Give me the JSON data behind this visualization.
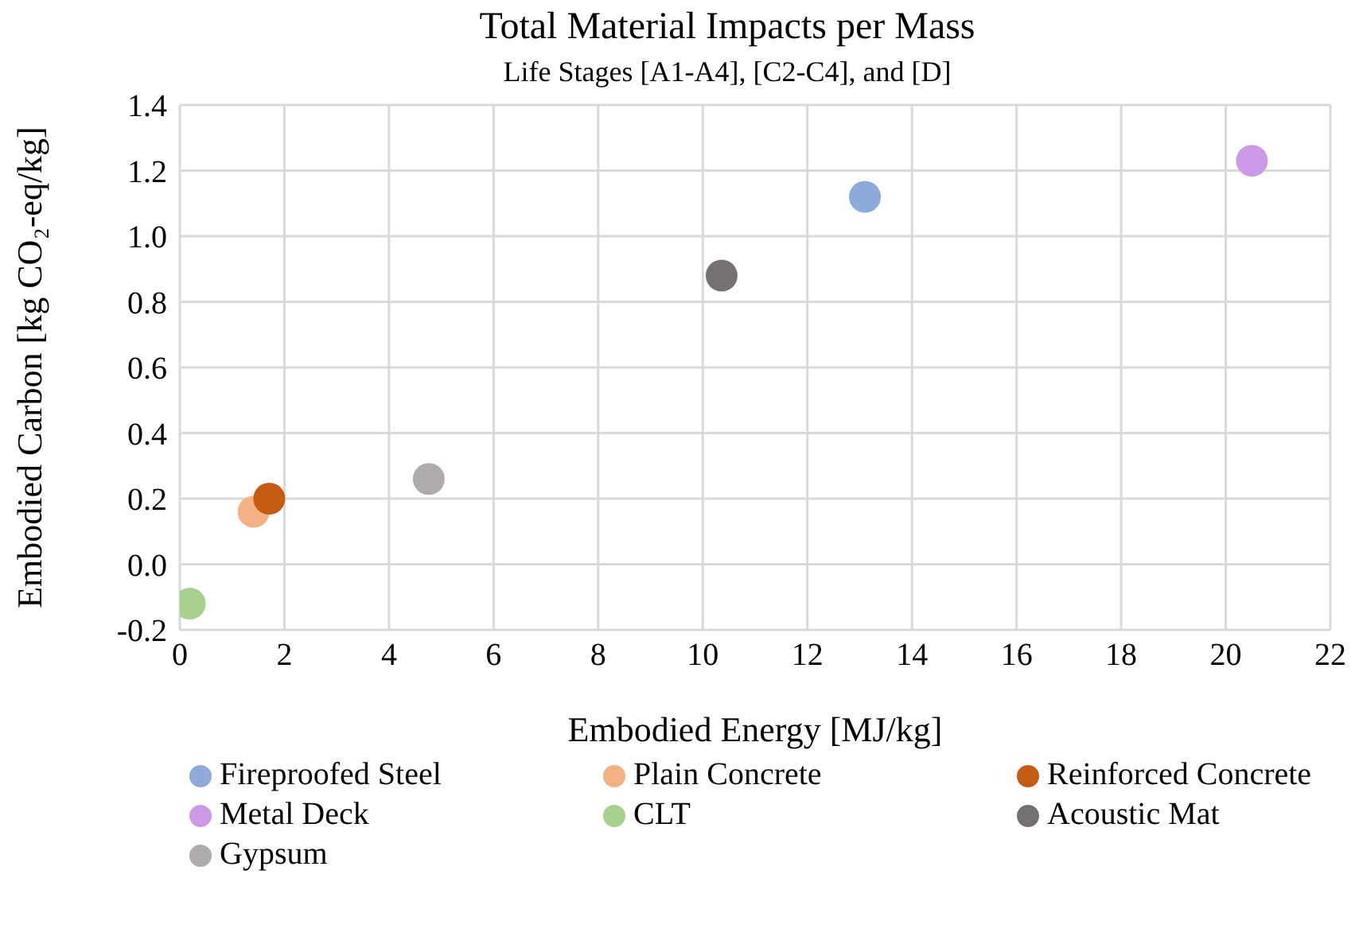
{
  "chart_data": {
    "type": "scatter",
    "title": "Total Material Impacts per Mass",
    "subtitle": "Life Stages [A1-A4], [C2-C4], and [D]",
    "xlabel": "Embodied Energy [MJ/kg]",
    "ylabel": "Embodied Carbon [kg CO₂-eq/kg]",
    "xlim": [
      0,
      22
    ],
    "xticks": [
      0,
      2,
      4,
      6,
      8,
      10,
      12,
      14,
      16,
      18,
      20,
      22
    ],
    "ylim": [
      -0.2,
      1.4
    ],
    "yticks": [
      {
        "value": -0.2,
        "label": "-0.2"
      },
      {
        "value": 0,
        "label": "0.0"
      },
      {
        "value": 0.2,
        "label": "0.2"
      },
      {
        "value": 0.4,
        "label": "0.4"
      },
      {
        "value": 0.6,
        "label": "0.6"
      },
      {
        "value": 0.8,
        "label": "0.8"
      },
      {
        "value": 1,
        "label": "1.0"
      },
      {
        "value": 1.2,
        "label": "1.2"
      },
      {
        "value": 1.4,
        "label": "1.4"
      }
    ],
    "grid": true,
    "legend": "bottom",
    "marker": "circle",
    "series": [
      {
        "name": "Fireproofed Steel",
        "color": "#8eaadb",
        "x": [
          13.1
        ],
        "values": [
          1.12
        ]
      },
      {
        "name": "Plain Concrete",
        "color": "#f4b183",
        "x": [
          1.41
        ],
        "values": [
          0.16
        ]
      },
      {
        "name": "Reinforced Concrete",
        "color": "#c55a11",
        "x": [
          1.71
        ],
        "values": [
          0.2
        ]
      },
      {
        "name": "Metal Deck",
        "color": "#cc99e6",
        "x": [
          20.5
        ],
        "values": [
          1.23
        ]
      },
      {
        "name": "CLT",
        "color": "#a9d18e",
        "x": [
          0.19
        ],
        "values": [
          -0.12
        ]
      },
      {
        "name": "Acoustic Mat",
        "color": "#767171",
        "x": [
          10.36
        ],
        "values": [
          0.88
        ]
      },
      {
        "name": "Gypsum",
        "color": "#afabab",
        "x": [
          4.76
        ],
        "values": [
          0.26
        ]
      }
    ]
  }
}
